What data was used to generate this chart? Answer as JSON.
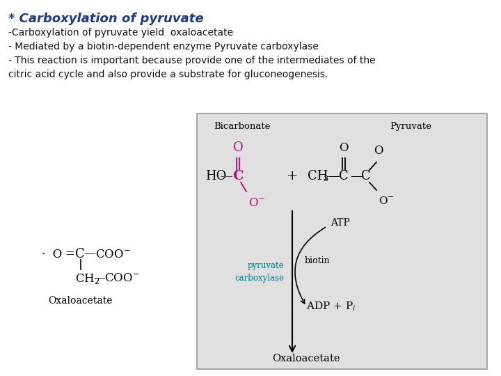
{
  "title": "* Carboxylation of pyruvate",
  "title_color": "#1a3a8a",
  "title_fontsize": 13,
  "line1": "-Carboxylation of pyruvate yield  oxaloacetate",
  "line2": "- Mediated by a biotin-dependent enzyme Pyruvate carboxylase",
  "line3": "- This reaction is important because provide one of the intermediates of the",
  "line4": "citric acid cycle and also provide a substrate for gluconeogenesis.",
  "text_color": "#111111",
  "text_fontsize": 10,
  "bg_color": "#ffffff",
  "diagram_bg": "#e0e0e0",
  "diagram_border": "#999999",
  "pink_color": "#cc007a",
  "teal_color": "#007b8a",
  "black_color": "#000000",
  "serif_font": "DejaVu Serif",
  "sans_font": "DejaVu Sans"
}
